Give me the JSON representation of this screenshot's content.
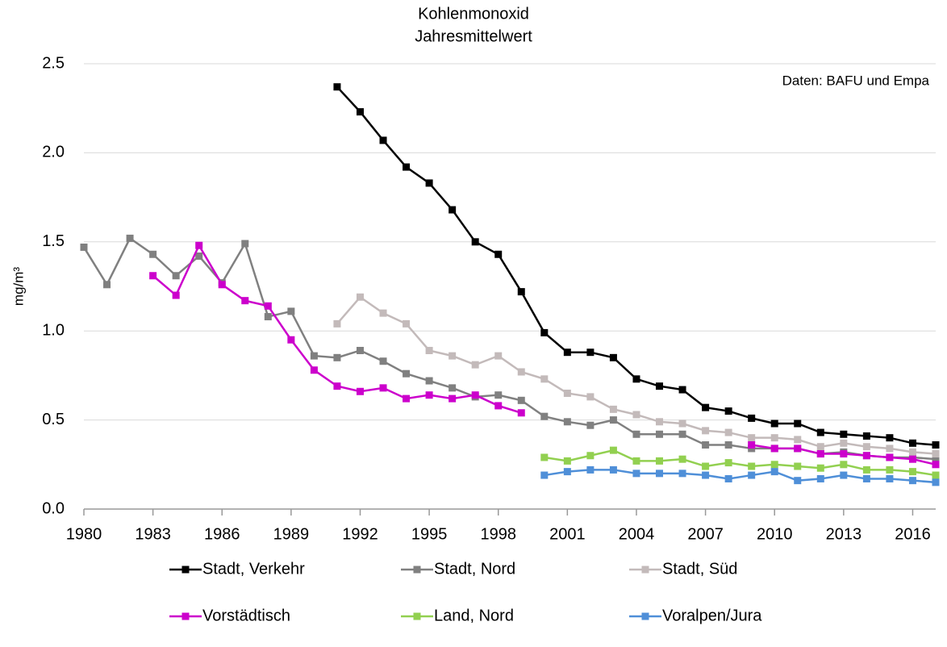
{
  "chart_data": {
    "type": "line",
    "title": "Kohlenmonoxid",
    "subtitle": "Jahresmittelwert",
    "y_label": "mg/m³",
    "annotation": "Daten: BAFU und Empa",
    "x": [
      1980,
      1981,
      1982,
      1983,
      1984,
      1985,
      1986,
      1987,
      1988,
      1989,
      1990,
      1991,
      1992,
      1993,
      1994,
      1995,
      1996,
      1997,
      1998,
      1999,
      2000,
      2001,
      2002,
      2003,
      2004,
      2005,
      2006,
      2007,
      2008,
      2009,
      2010,
      2011,
      2012,
      2013,
      2014,
      2015,
      2016,
      2017
    ],
    "xlim": [
      1980,
      2017
    ],
    "xticks": [
      1980,
      1983,
      1986,
      1989,
      1992,
      1995,
      1998,
      2001,
      2004,
      2007,
      2010,
      2013,
      2016
    ],
    "ylim": [
      0,
      2.5
    ],
    "yticks": [
      {
        "value": 0,
        "label": "0.0"
      },
      0.5,
      {
        "value": 1,
        "label": "1.0"
      },
      1.5,
      {
        "value": 2,
        "label": "2.0"
      },
      2.5
    ],
    "grid": true,
    "legend": "bottom",
    "series": [
      {
        "name": "Stadt, Verkehr",
        "color": "#000000",
        "values": [
          null,
          null,
          null,
          null,
          null,
          null,
          null,
          null,
          null,
          null,
          null,
          2.37,
          2.23,
          2.07,
          1.92,
          1.83,
          1.68,
          1.5,
          1.43,
          1.22,
          0.99,
          0.88,
          0.88,
          0.85,
          0.73,
          0.69,
          0.67,
          0.57,
          0.55,
          0.51,
          0.48,
          0.48,
          0.43,
          0.42,
          0.41,
          0.4,
          0.37,
          0.36
        ]
      },
      {
        "name": "Stadt, Nord",
        "color": "#808080",
        "values": [
          1.47,
          1.26,
          1.52,
          1.43,
          1.31,
          1.42,
          1.27,
          1.49,
          1.08,
          1.11,
          0.86,
          0.85,
          0.89,
          0.83,
          0.76,
          0.72,
          0.68,
          0.63,
          0.64,
          0.61,
          0.52,
          0.49,
          0.47,
          0.5,
          0.42,
          0.42,
          0.42,
          0.36,
          0.36,
          0.34,
          0.34,
          0.34,
          0.31,
          0.32,
          0.3,
          0.29,
          0.29,
          0.28
        ]
      },
      {
        "name": "Stadt, Süd",
        "color": "#c3baba",
        "values": [
          null,
          null,
          null,
          null,
          null,
          null,
          null,
          null,
          null,
          null,
          null,
          1.04,
          1.19,
          1.1,
          1.04,
          0.89,
          0.86,
          0.81,
          0.86,
          0.77,
          0.73,
          0.65,
          0.63,
          0.56,
          0.53,
          0.49,
          0.48,
          0.44,
          0.43,
          0.4,
          0.4,
          0.39,
          0.35,
          0.37,
          0.35,
          0.34,
          0.32,
          0.31
        ]
      },
      {
        "name": "Vorstädtisch",
        "color": "#cc00cc",
        "values": [
          null,
          null,
          null,
          1.31,
          1.2,
          1.48,
          1.26,
          1.17,
          1.14,
          0.95,
          0.78,
          0.69,
          0.66,
          0.68,
          0.62,
          0.64,
          0.62,
          0.64,
          0.58,
          0.54,
          null,
          null,
          null,
          null,
          null,
          null,
          null,
          null,
          null,
          0.36,
          0.34,
          0.34,
          0.31,
          0.31,
          0.3,
          0.29,
          0.28,
          0.25
        ]
      },
      {
        "name": "Land, Nord",
        "color": "#92d050",
        "values": [
          null,
          null,
          null,
          null,
          null,
          null,
          null,
          null,
          null,
          null,
          null,
          null,
          null,
          null,
          null,
          null,
          null,
          null,
          null,
          null,
          0.29,
          0.27,
          0.3,
          0.33,
          0.27,
          0.27,
          0.28,
          0.24,
          0.26,
          0.24,
          0.25,
          0.24,
          0.23,
          0.25,
          0.22,
          0.22,
          0.21,
          0.19
        ]
      },
      {
        "name": "Voralpen/Jura",
        "color": "#4f8fd8",
        "values": [
          null,
          null,
          null,
          null,
          null,
          null,
          null,
          null,
          null,
          null,
          null,
          null,
          null,
          null,
          null,
          null,
          null,
          null,
          null,
          null,
          0.19,
          0.21,
          0.22,
          0.22,
          0.2,
          0.2,
          0.2,
          0.19,
          0.17,
          0.19,
          0.21,
          0.16,
          0.17,
          0.19,
          0.17,
          0.17,
          0.16,
          0.15
        ]
      }
    ]
  }
}
